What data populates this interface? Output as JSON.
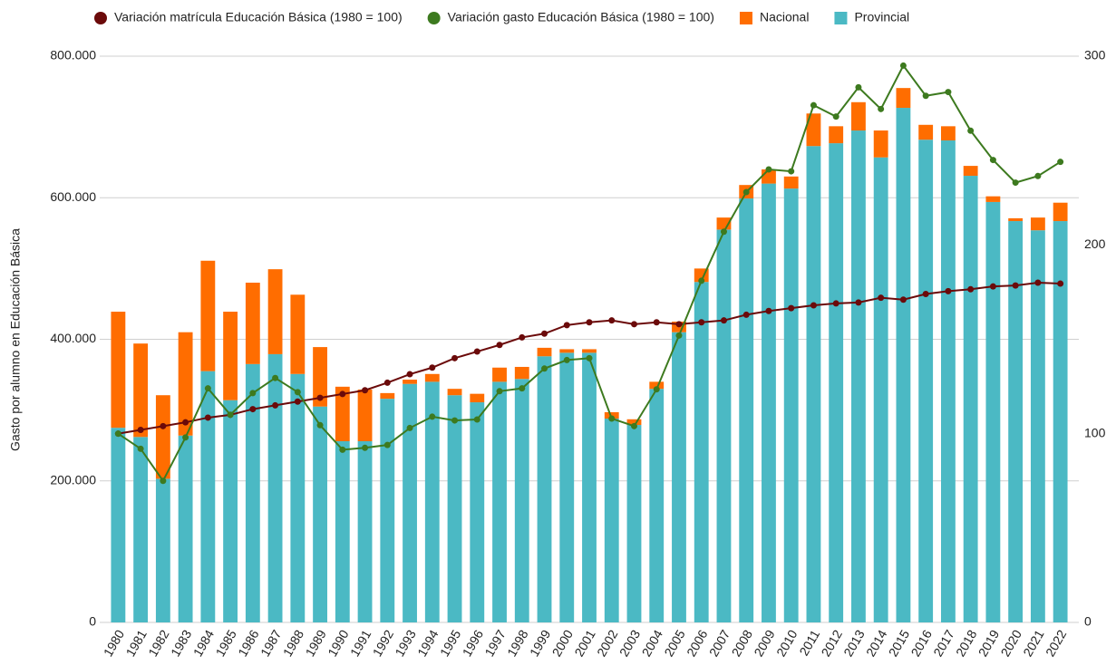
{
  "chart_data": {
    "type": "bar-line",
    "y_label": "Gasto por alumno en Educación Básica",
    "categories": [
      "1980",
      "1981",
      "1982",
      "1983",
      "1984",
      "1985",
      "1986",
      "1987",
      "1988",
      "1989",
      "1990",
      "1991",
      "1992",
      "1993",
      "1994",
      "1995",
      "1996",
      "1997",
      "1998",
      "1999",
      "2000",
      "2001",
      "2002",
      "2003",
      "2004",
      "2005",
      "2006",
      "2007",
      "2008",
      "2009",
      "2010",
      "2011",
      "2012",
      "2013",
      "2014",
      "2015",
      "2016",
      "2017",
      "2018",
      "2019",
      "2020",
      "2021",
      "2022"
    ],
    "series": [
      {
        "name": "Variación matrícula Educación Básica (1980 = 100)",
        "type": "line",
        "axis": "y2",
        "color": "#6b0a0a",
        "values": [
          100,
          102,
          104,
          106,
          108.5,
          110,
          113,
          115,
          117,
          119,
          121,
          123,
          127,
          131.5,
          135,
          140,
          143.5,
          147,
          151,
          153,
          157.5,
          159,
          160,
          158,
          159,
          158,
          159,
          160,
          163,
          165,
          166.5,
          168,
          169,
          169.5,
          172,
          171,
          174,
          175.5,
          176.5,
          178,
          178.5,
          180,
          179.5
        ]
      },
      {
        "name": "Variación gasto Educación Básica (1980 = 100)",
        "type": "line",
        "axis": "y2",
        "color": "#3d7a1f",
        "values": [
          100,
          92,
          75,
          98,
          124,
          110,
          121.5,
          129.5,
          122,
          104.5,
          91.5,
          92.5,
          94,
          103,
          109,
          107,
          107.5,
          122.5,
          124,
          134.5,
          139,
          140,
          108,
          104,
          123.5,
          152,
          181,
          207,
          228,
          240,
          239,
          274,
          268,
          283.5,
          272,
          295,
          279,
          281,
          260.5,
          245,
          233,
          236.5,
          244
        ]
      },
      {
        "name": "Nacional",
        "type": "bar",
        "color": "#ff6d00",
        "values": [
          164000,
          132000,
          118000,
          146000,
          156000,
          125000,
          115000,
          120000,
          112000,
          84000,
          77000,
          73000,
          8000,
          6000,
          11000,
          9000,
          12000,
          20000,
          17000,
          12000,
          5000,
          5000,
          9000,
          8000,
          10000,
          15000,
          19000,
          17000,
          19000,
          20000,
          17000,
          46000,
          24000,
          40000,
          38000,
          28000,
          21000,
          20000,
          14000,
          8000,
          4000,
          18000,
          26000
        ]
      },
      {
        "name": "Provincial",
        "type": "bar",
        "color": "#4bb9c4",
        "values": [
          275000,
          262000,
          203000,
          264000,
          355000,
          314000,
          365000,
          379000,
          351000,
          305000,
          256000,
          256000,
          316000,
          337000,
          340000,
          321000,
          311000,
          340000,
          344000,
          376000,
          381000,
          381000,
          288000,
          279000,
          330000,
          410000,
          481000,
          555000,
          599000,
          620000,
          613000,
          673000,
          677000,
          695000,
          657000,
          727000,
          682000,
          681000,
          631000,
          594000,
          567000,
          554000,
          567000
        ]
      }
    ],
    "ylim": [
      0,
      800000
    ],
    "yticks": [
      0,
      {
        "value": 200000,
        "label": "200.000"
      },
      {
        "value": 400000,
        "label": "400.000"
      },
      {
        "value": 600000,
        "label": "600.000"
      },
      {
        "value": 800000,
        "label": "800.000"
      }
    ],
    "y2lim": [
      0,
      300
    ],
    "y2ticks": [
      0,
      100,
      200,
      300
    ],
    "grid": true,
    "legend": "top"
  }
}
